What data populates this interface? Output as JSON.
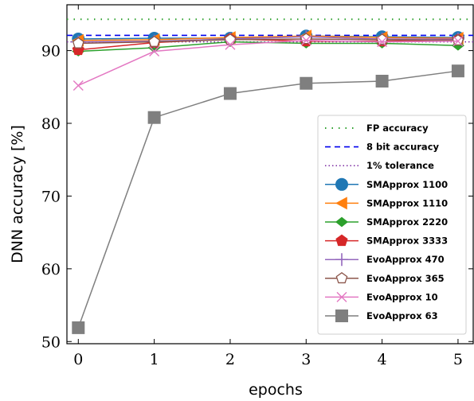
{
  "chart_data": {
    "type": "line",
    "title": "",
    "xlabel": "epochs",
    "ylabel": "DNN accuracy [%]",
    "xlim": [
      -0.15,
      5.2
    ],
    "ylim": [
      49.7,
      96.3
    ],
    "x": [
      0,
      1,
      2,
      3,
      4,
      5
    ],
    "xticks": [
      "0",
      "1",
      "2",
      "3",
      "4",
      "5"
    ],
    "yticks": [
      "50",
      "60",
      "70",
      "80",
      "90"
    ],
    "ytick_values": [
      50,
      60,
      70,
      80,
      90
    ],
    "grid": false,
    "legend_position": "right",
    "reference_lines": [
      {
        "name": "FP accuracy",
        "value": 94.3,
        "style": "dotted-sparse",
        "color": "#2ca02c"
      },
      {
        "name": "8 bit accuracy",
        "value": 92.1,
        "style": "dashed",
        "color": "#0000ee"
      },
      {
        "name": "1% tolerance",
        "value": 91.2,
        "style": "dotted",
        "color": "#7a2aa0"
      }
    ],
    "series": [
      {
        "name": "SMApprox 1100",
        "marker": "circle",
        "color": "#1f77b4",
        "values": [
          91.6,
          91.7,
          91.7,
          92.0,
          91.9,
          91.8
        ]
      },
      {
        "name": "SMApprox 1110",
        "marker": "triangle-left",
        "color": "#ff7f0e",
        "values": [
          91.4,
          91.5,
          91.8,
          92.0,
          91.8,
          91.7
        ]
      },
      {
        "name": "SMApprox 2220",
        "marker": "diamond",
        "color": "#2ca02c",
        "values": [
          89.9,
          90.4,
          91.2,
          91.0,
          91.0,
          90.7
        ]
      },
      {
        "name": "SMApprox 3333",
        "marker": "pentagon",
        "color": "#d62728",
        "values": [
          90.1,
          91.1,
          91.6,
          91.3,
          91.3,
          91.5
        ]
      },
      {
        "name": "EvoApprox 470",
        "marker": "plus",
        "color": "#9467bd",
        "values": [
          91.2,
          91.3,
          91.6,
          91.9,
          91.6,
          91.6
        ]
      },
      {
        "name": "EvoApprox 365",
        "marker": "pentagon-open",
        "color": "#8c564b",
        "values": [
          91.0,
          91.2,
          91.5,
          91.6,
          91.5,
          91.4
        ]
      },
      {
        "name": "EvoApprox 10",
        "marker": "x",
        "color": "#e377c2",
        "values": [
          85.2,
          89.9,
          90.8,
          91.4,
          91.2,
          91.3
        ]
      },
      {
        "name": "EvoApprox 63",
        "marker": "square",
        "color": "#7f7f7f",
        "values": [
          51.9,
          80.8,
          84.1,
          85.5,
          85.8,
          87.2
        ]
      }
    ]
  }
}
